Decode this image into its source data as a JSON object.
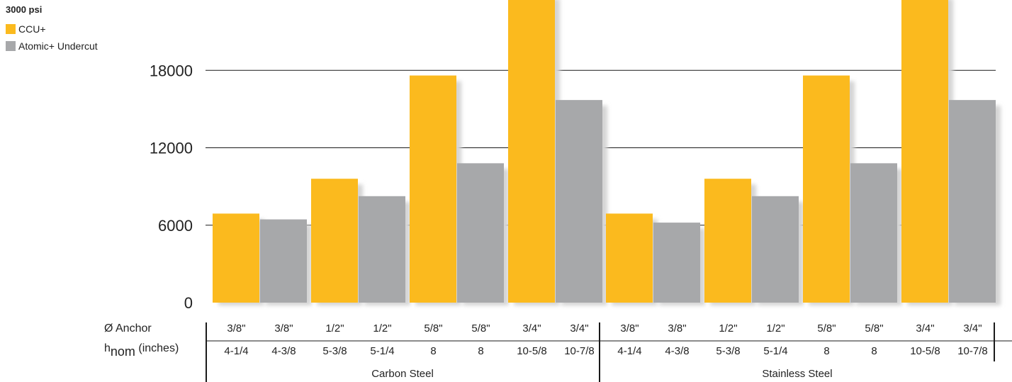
{
  "chart_data": {
    "type": "bar",
    "title": "",
    "legend_title": "3000 psi",
    "legend_placement": "top-left",
    "grid": true,
    "ylim": [
      0,
      24000
    ],
    "yticks": [
      "0",
      "6000",
      "12000",
      "18000",
      "24000"
    ],
    "row_labels": {
      "anchor": "Ø Anchor",
      "hnom_main": "h",
      "hnom_sub": "nom",
      "hnom_units": " (inches)"
    },
    "groups": [
      {
        "label": "Carbon Steel",
        "categories": [
          {
            "anchor": "3/8\"",
            "hnom": "4-1/4",
            "series": 0,
            "value": 6900
          },
          {
            "anchor": "3/8\"",
            "hnom": "4-3/8",
            "series": 1,
            "value": 6450
          },
          {
            "anchor": "1/2\"",
            "hnom": "5-3/8",
            "series": 0,
            "value": 9600
          },
          {
            "anchor": "1/2\"",
            "hnom": "5-1/4",
            "series": 1,
            "value": 8250
          },
          {
            "anchor": "5/8\"",
            "hnom": "8",
            "series": 0,
            "value": 17600
          },
          {
            "anchor": "5/8\"",
            "hnom": "8",
            "series": 1,
            "value": 10800
          },
          {
            "anchor": "3/4\"",
            "hnom": "10-5/8",
            "series": 0,
            "value": 24000
          },
          {
            "anchor": "3/4\"",
            "hnom": "10-7/8",
            "series": 1,
            "value": 15700
          }
        ]
      },
      {
        "label": "Stainless Steel",
        "categories": [
          {
            "anchor": "3/8\"",
            "hnom": "4-1/4",
            "series": 0,
            "value": 6900
          },
          {
            "anchor": "3/8\"",
            "hnom": "4-3/8",
            "series": 1,
            "value": 6200
          },
          {
            "anchor": "1/2\"",
            "hnom": "5-3/8",
            "series": 0,
            "value": 9600
          },
          {
            "anchor": "1/2\"",
            "hnom": "5-1/4",
            "series": 1,
            "value": 8250
          },
          {
            "anchor": "5/8\"",
            "hnom": "8",
            "series": 0,
            "value": 17600
          },
          {
            "anchor": "5/8\"",
            "hnom": "8",
            "series": 1,
            "value": 10800
          },
          {
            "anchor": "3/4\"",
            "hnom": "10-5/8",
            "series": 0,
            "value": 24000
          },
          {
            "anchor": "3/4\"",
            "hnom": "10-7/8",
            "series": 1,
            "value": 15700
          }
        ]
      }
    ],
    "series": [
      {
        "name": "CCU+",
        "color": "#FBBA1E"
      },
      {
        "name": "Atomic+ Undercut",
        "color": "#A7A8AA"
      }
    ]
  }
}
